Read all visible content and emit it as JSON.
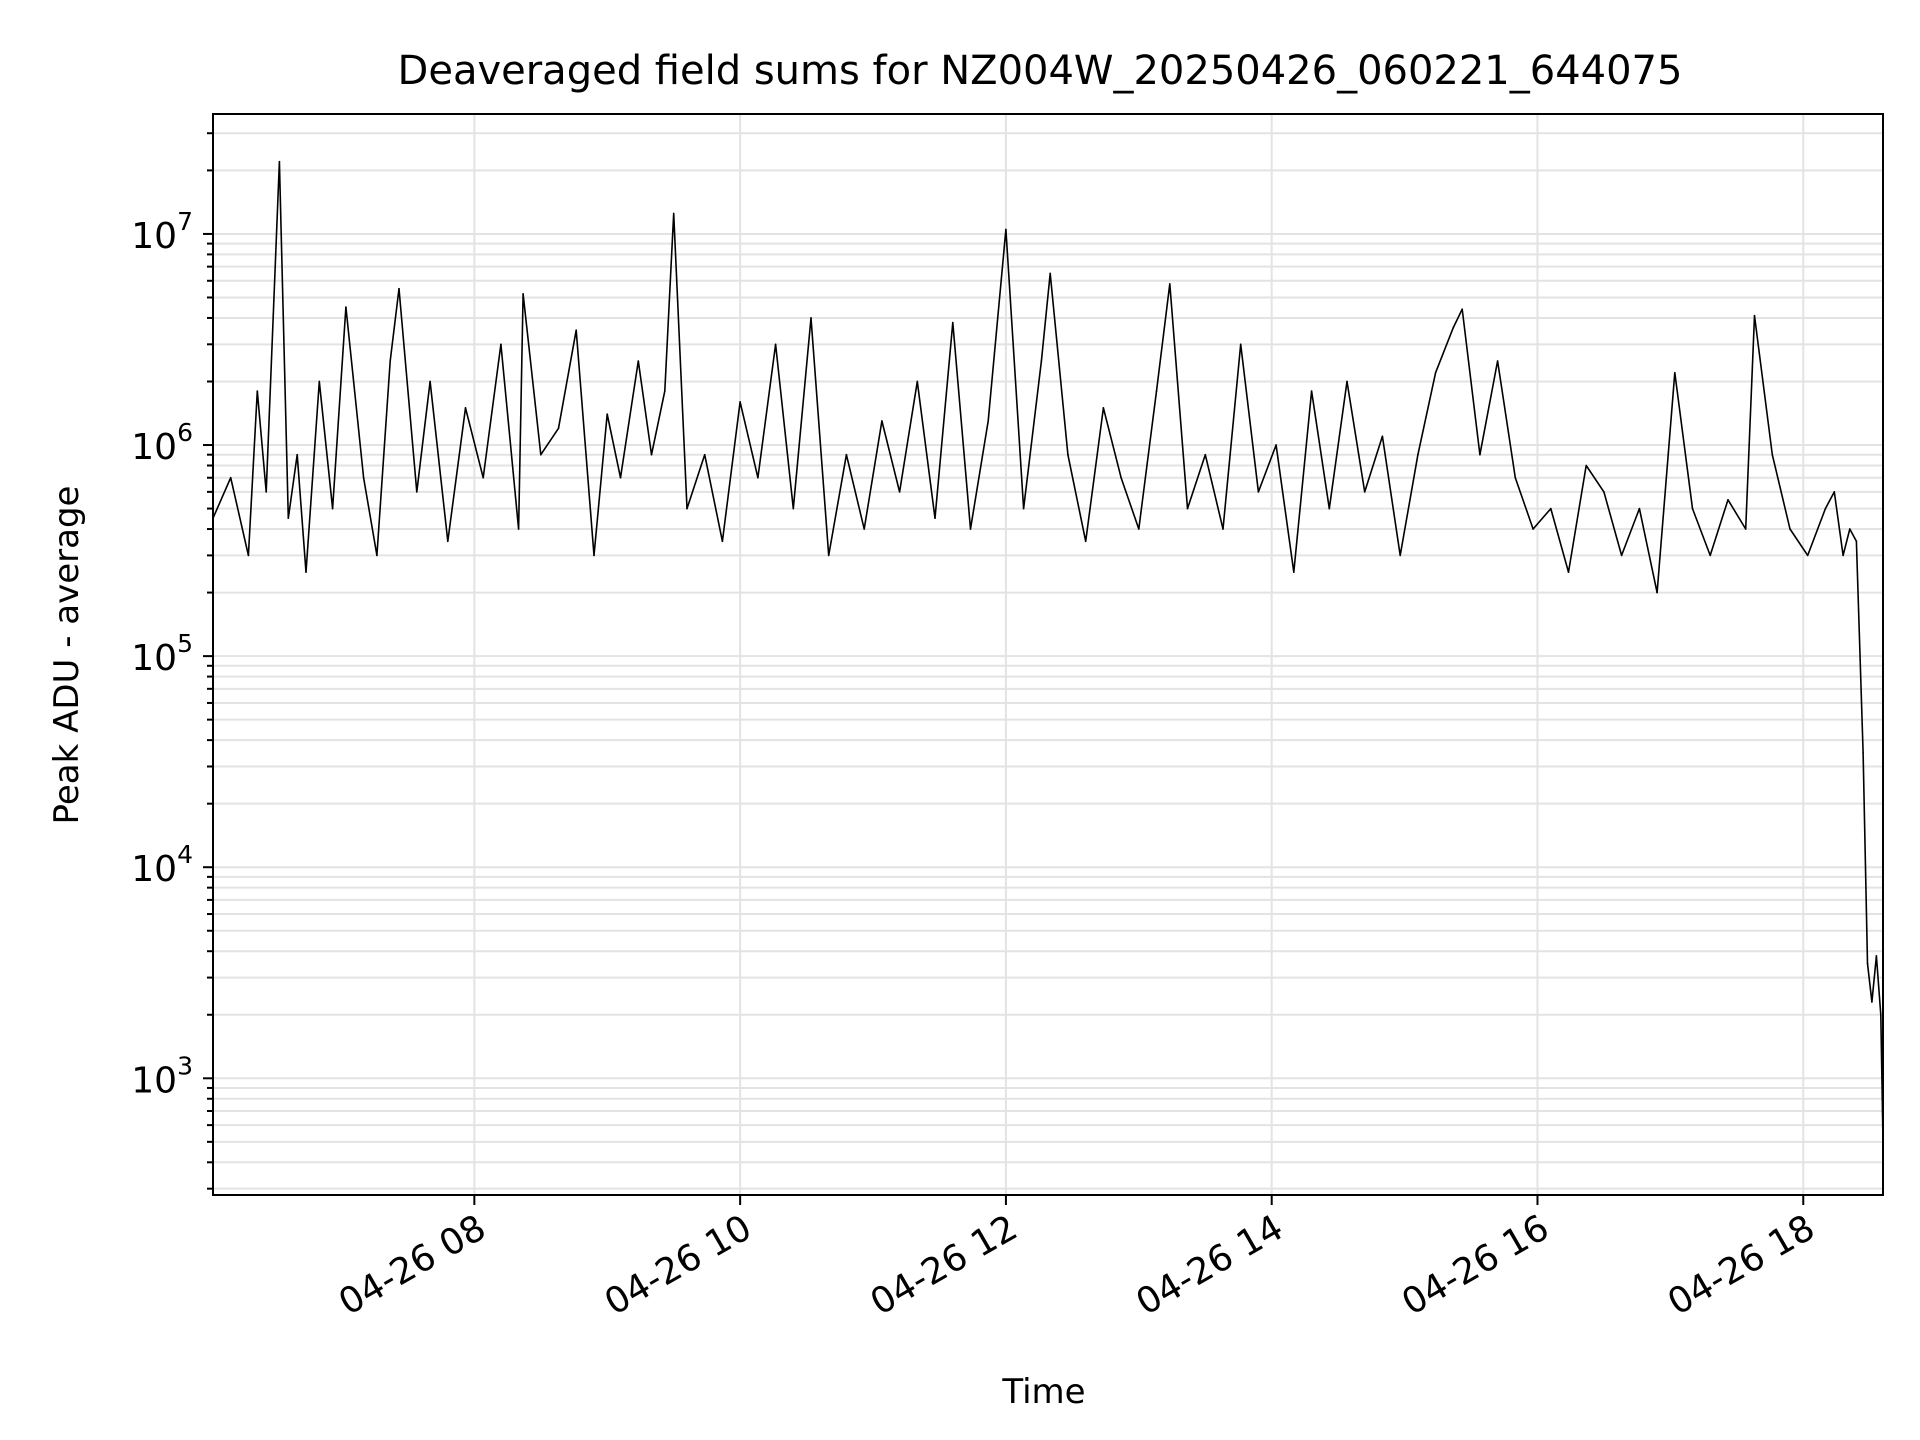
{
  "chart_data": {
    "type": "line",
    "title": "Deaveraged field sums for NZ004W_20250426_060221_644075",
    "xlabel": "Time",
    "ylabel": "Peak ADU - average",
    "y_scale": "log",
    "ylim": [
      280,
      37000000
    ],
    "xlim": [
      "2025-04-26 06:02",
      "2025-04-26 18:36"
    ],
    "grid": true,
    "grid_minor": true,
    "line_color": "#000000",
    "x_ticks": [
      {
        "label": "04-26 08",
        "value": "2025-04-26 08:00"
      },
      {
        "label": "04-26 10",
        "value": "2025-04-26 10:00"
      },
      {
        "label": "04-26 12",
        "value": "2025-04-26 12:00"
      },
      {
        "label": "04-26 14",
        "value": "2025-04-26 14:00"
      },
      {
        "label": "04-26 16",
        "value": "2025-04-26 16:00"
      },
      {
        "label": "04-26 18",
        "value": "2025-04-26 18:00"
      }
    ],
    "y_ticks": [
      {
        "base": "10",
        "exp": "3",
        "value": 1000
      },
      {
        "base": "10",
        "exp": "4",
        "value": 10000
      },
      {
        "base": "10",
        "exp": "5",
        "value": 100000
      },
      {
        "base": "10",
        "exp": "6",
        "value": 1000000
      },
      {
        "base": "10",
        "exp": "7",
        "value": 10000000
      }
    ],
    "series": [
      {
        "x": [
          "2025-04-26 06:02",
          "2025-04-26 06:10",
          "2025-04-26 06:18",
          "2025-04-26 06:22",
          "2025-04-26 06:26",
          "2025-04-26 06:32",
          "2025-04-26 06:36",
          "2025-04-26 06:40",
          "2025-04-26 06:44",
          "2025-04-26 06:50",
          "2025-04-26 06:56",
          "2025-04-26 07:02",
          "2025-04-26 07:10",
          "2025-04-26 07:16",
          "2025-04-26 07:22",
          "2025-04-26 07:26",
          "2025-04-26 07:34",
          "2025-04-26 07:40",
          "2025-04-26 07:48",
          "2025-04-26 07:56",
          "2025-04-26 08:04",
          "2025-04-26 08:12",
          "2025-04-26 08:20",
          "2025-04-26 08:22",
          "2025-04-26 08:30",
          "2025-04-26 08:38",
          "2025-04-26 08:46",
          "2025-04-26 08:54",
          "2025-04-26 09:00",
          "2025-04-26 09:06",
          "2025-04-26 09:14",
          "2025-04-26 09:20",
          "2025-04-26 09:26",
          "2025-04-26 09:30",
          "2025-04-26 09:36",
          "2025-04-26 09:44",
          "2025-04-26 09:52",
          "2025-04-26 10:00",
          "2025-04-26 10:08",
          "2025-04-26 10:16",
          "2025-04-26 10:24",
          "2025-04-26 10:32",
          "2025-04-26 10:40",
          "2025-04-26 10:48",
          "2025-04-26 10:56",
          "2025-04-26 11:04",
          "2025-04-26 11:12",
          "2025-04-26 11:20",
          "2025-04-26 11:28",
          "2025-04-26 11:36",
          "2025-04-26 11:44",
          "2025-04-26 11:52",
          "2025-04-26 12:00",
          "2025-04-26 12:08",
          "2025-04-26 12:16",
          "2025-04-26 12:20",
          "2025-04-26 12:28",
          "2025-04-26 12:36",
          "2025-04-26 12:44",
          "2025-04-26 12:52",
          "2025-04-26 13:00",
          "2025-04-26 13:08",
          "2025-04-26 13:14",
          "2025-04-26 13:22",
          "2025-04-26 13:30",
          "2025-04-26 13:38",
          "2025-04-26 13:46",
          "2025-04-26 13:54",
          "2025-04-26 14:02",
          "2025-04-26 14:10",
          "2025-04-26 14:18",
          "2025-04-26 14:26",
          "2025-04-26 14:34",
          "2025-04-26 14:42",
          "2025-04-26 14:50",
          "2025-04-26 14:58",
          "2025-04-26 15:06",
          "2025-04-26 15:14",
          "2025-04-26 15:22",
          "2025-04-26 15:26",
          "2025-04-26 15:34",
          "2025-04-26 15:42",
          "2025-04-26 15:50",
          "2025-04-26 15:58",
          "2025-04-26 16:06",
          "2025-04-26 16:14",
          "2025-04-26 16:22",
          "2025-04-26 16:30",
          "2025-04-26 16:38",
          "2025-04-26 16:46",
          "2025-04-26 16:54",
          "2025-04-26 17:02",
          "2025-04-26 17:10",
          "2025-04-26 17:18",
          "2025-04-26 17:26",
          "2025-04-26 17:34",
          "2025-04-26 17:38",
          "2025-04-26 17:46",
          "2025-04-26 17:54",
          "2025-04-26 18:02",
          "2025-04-26 18:10",
          "2025-04-26 18:14",
          "2025-04-26 18:18",
          "2025-04-26 18:21",
          "2025-04-26 18:24",
          "2025-04-26 18:27",
          "2025-04-26 18:29",
          "2025-04-26 18:31",
          "2025-04-26 18:33",
          "2025-04-26 18:35",
          "2025-04-26 18:36"
        ],
        "values": [
          450000,
          700000,
          300000,
          1800000,
          600000,
          22000000,
          450000,
          900000,
          250000,
          2000000,
          500000,
          4500000,
          700000,
          300000,
          2500000,
          5500000,
          600000,
          2000000,
          350000,
          1500000,
          700000,
          3000000,
          400000,
          5200000,
          900000,
          1200000,
          3500000,
          300000,
          1400000,
          700000,
          2500000,
          900000,
          1800000,
          12500000,
          500000,
          900000,
          350000,
          1600000,
          700000,
          3000000,
          500000,
          4000000,
          300000,
          900000,
          400000,
          1300000,
          600000,
          2000000,
          450000,
          3800000,
          400000,
          1300000,
          10500000,
          500000,
          2500000,
          6500000,
          900000,
          350000,
          1500000,
          700000,
          400000,
          1800000,
          5800000,
          500000,
          900000,
          400000,
          3000000,
          600000,
          1000000,
          250000,
          1800000,
          500000,
          2000000,
          600000,
          1100000,
          300000,
          900000,
          2200000,
          3600000,
          4400000,
          900000,
          2500000,
          700000,
          400000,
          500000,
          250000,
          800000,
          600000,
          300000,
          500000,
          200000,
          2200000,
          500000,
          300000,
          550000,
          400000,
          4100000,
          900000,
          400000,
          300000,
          500000,
          600000,
          300000,
          400000,
          350000,
          35000,
          3500,
          2300,
          3800,
          2000,
          500
        ]
      }
    ]
  }
}
